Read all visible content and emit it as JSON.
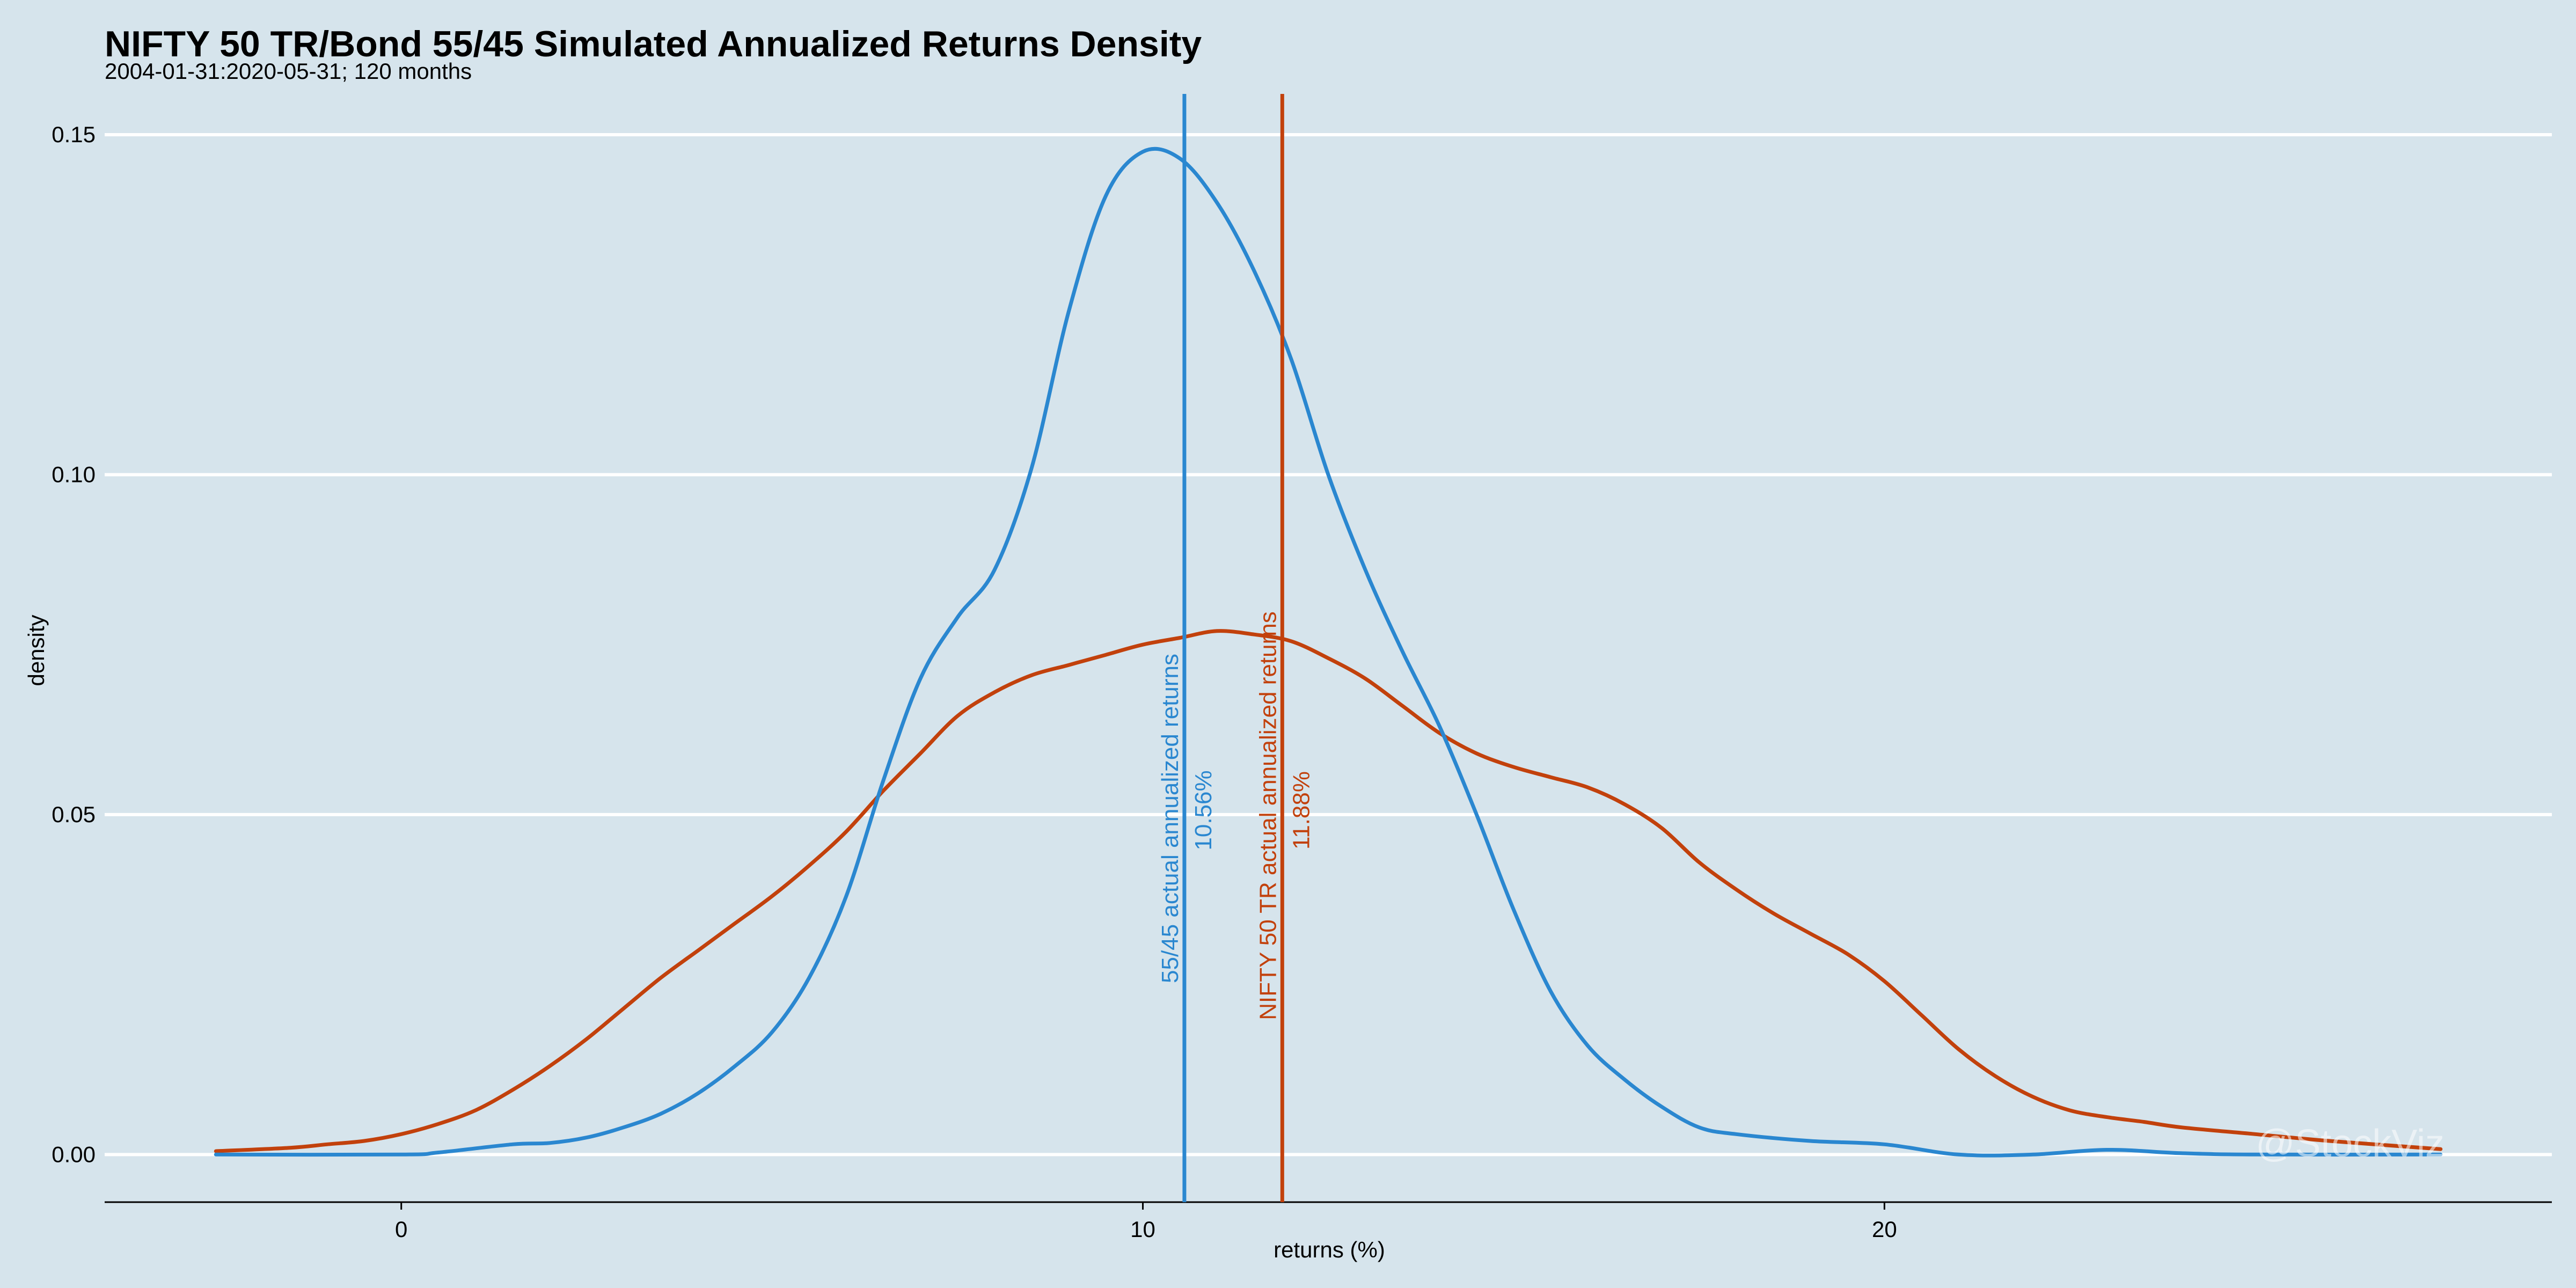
{
  "chart_data": {
    "type": "line",
    "title": "NIFTY 50 TR/Bond 55/45 Simulated Annualized Returns Density",
    "subtitle": "2004-01-31:2020-05-31; 120 months",
    "xlabel": "returns (%)",
    "ylabel": "density",
    "xlim": [
      -4,
      29
    ],
    "ylim": [
      -0.007,
      0.156
    ],
    "x_ticks": [
      0,
      10,
      20
    ],
    "x_tick_labels": [
      "0",
      "10",
      "20"
    ],
    "y_ticks": [
      0.0,
      0.05,
      0.1,
      0.15
    ],
    "y_tick_labels": [
      "0.00",
      "0.05",
      "0.10",
      "0.15"
    ],
    "grid": "horizontal",
    "watermark": "@StockViz",
    "colors": {
      "blended": "#2a87d0",
      "nifty": "#c2410c",
      "background": "#d6e4ec"
    },
    "series": [
      {
        "color": "#2a87d0",
        "points": [
          [
            -2.5,
            0.0
          ],
          [
            0.0,
            0.0
          ],
          [
            0.5,
            0.0003
          ],
          [
            1.5,
            0.0015
          ],
          [
            2.0,
            0.0017
          ],
          [
            2.5,
            0.0025
          ],
          [
            3.0,
            0.004
          ],
          [
            3.5,
            0.006
          ],
          [
            4.0,
            0.009
          ],
          [
            4.5,
            0.013
          ],
          [
            5.0,
            0.018
          ],
          [
            5.5,
            0.026
          ],
          [
            6.0,
            0.038
          ],
          [
            6.5,
            0.055
          ],
          [
            7.0,
            0.07
          ],
          [
            7.5,
            0.079
          ],
          [
            8.0,
            0.086
          ],
          [
            8.5,
            0.101
          ],
          [
            9.0,
            0.124
          ],
          [
            9.5,
            0.141
          ],
          [
            10.0,
            0.1475
          ],
          [
            10.5,
            0.1465
          ],
          [
            11.0,
            0.14
          ],
          [
            11.5,
            0.13
          ],
          [
            12.0,
            0.117
          ],
          [
            12.5,
            0.1
          ],
          [
            13.0,
            0.086
          ],
          [
            13.5,
            0.074
          ],
          [
            14.0,
            0.063
          ],
          [
            14.5,
            0.05
          ],
          [
            15.0,
            0.036
          ],
          [
            15.5,
            0.024
          ],
          [
            16.0,
            0.016
          ],
          [
            16.5,
            0.011
          ],
          [
            17.0,
            0.007
          ],
          [
            17.5,
            0.004
          ],
          [
            18.0,
            0.003
          ],
          [
            19.0,
            0.002
          ],
          [
            20.0,
            0.0015
          ],
          [
            21.0,
            0.0
          ],
          [
            22.0,
            0.0
          ],
          [
            23.0,
            0.0007
          ],
          [
            24.0,
            0.0002
          ],
          [
            25.0,
            0.0
          ],
          [
            27.5,
            0.0
          ]
        ]
      },
      {
        "color": "#c2410c",
        "points": [
          [
            -2.5,
            0.0005
          ],
          [
            -1.5,
            0.001
          ],
          [
            -1.0,
            0.0015
          ],
          [
            -0.5,
            0.002
          ],
          [
            0.0,
            0.003
          ],
          [
            0.5,
            0.0045
          ],
          [
            1.0,
            0.0065
          ],
          [
            1.5,
            0.0095
          ],
          [
            2.0,
            0.013
          ],
          [
            2.5,
            0.017
          ],
          [
            3.0,
            0.0215
          ],
          [
            3.5,
            0.026
          ],
          [
            4.0,
            0.03
          ],
          [
            4.5,
            0.034
          ],
          [
            5.0,
            0.038
          ],
          [
            5.5,
            0.0425
          ],
          [
            6.0,
            0.0475
          ],
          [
            6.5,
            0.0535
          ],
          [
            7.0,
            0.059
          ],
          [
            7.5,
            0.0645
          ],
          [
            8.0,
            0.068
          ],
          [
            8.5,
            0.0705
          ],
          [
            9.0,
            0.072
          ],
          [
            9.5,
            0.0735
          ],
          [
            10.0,
            0.075
          ],
          [
            10.5,
            0.076
          ],
          [
            11.0,
            0.077
          ],
          [
            11.5,
            0.0765
          ],
          [
            12.0,
            0.0755
          ],
          [
            12.5,
            0.073
          ],
          [
            13.0,
            0.07
          ],
          [
            13.5,
            0.066
          ],
          [
            14.0,
            0.062
          ],
          [
            14.5,
            0.059
          ],
          [
            15.0,
            0.057
          ],
          [
            15.5,
            0.0555
          ],
          [
            16.0,
            0.054
          ],
          [
            16.5,
            0.0515
          ],
          [
            17.0,
            0.048
          ],
          [
            17.5,
            0.043
          ],
          [
            18.0,
            0.039
          ],
          [
            18.5,
            0.0355
          ],
          [
            19.0,
            0.0325
          ],
          [
            19.5,
            0.0295
          ],
          [
            20.0,
            0.0255
          ],
          [
            20.5,
            0.0205
          ],
          [
            21.0,
            0.0155
          ],
          [
            21.5,
            0.0115
          ],
          [
            22.0,
            0.0085
          ],
          [
            22.5,
            0.0065
          ],
          [
            23.0,
            0.0055
          ],
          [
            23.5,
            0.0048
          ],
          [
            24.0,
            0.004
          ],
          [
            25.0,
            0.003
          ],
          [
            26.0,
            0.002
          ],
          [
            27.5,
            0.0008
          ]
        ]
      }
    ],
    "vlines": [
      {
        "x": 10.56,
        "color": "#2a87d0",
        "label": "55/45 actual annualized returns",
        "value_label": "10.56%"
      },
      {
        "x": 11.88,
        "color": "#c2410c",
        "label": "NIFTY 50 TR actual annualized returns",
        "value_label": "11.88%"
      }
    ]
  }
}
